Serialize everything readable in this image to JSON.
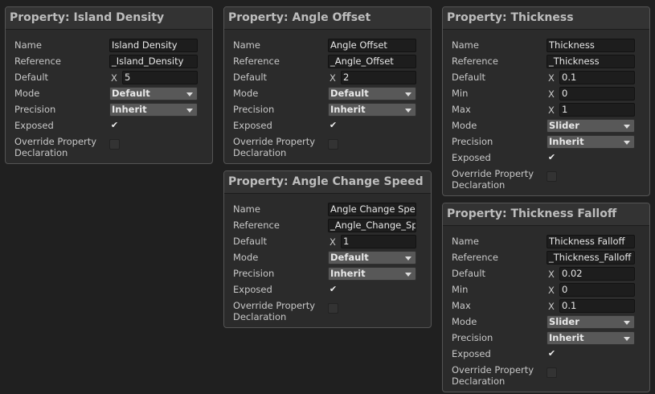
{
  "panels": [
    {
      "title": "Property: Island Density",
      "rows": [
        {
          "label": "Name",
          "text": "Island Density"
        },
        {
          "label": "Reference",
          "text": "_Island_Density"
        },
        {
          "label": "Default",
          "axis": "X",
          "number": 5
        },
        {
          "label": "Mode",
          "dropdown": "Default"
        },
        {
          "label": "Precision",
          "dropdown": "Inherit"
        },
        {
          "label": "Exposed",
          "checked": true
        },
        {
          "label": "Override Property Declaration",
          "checked": false
        }
      ]
    },
    {
      "title": "Property: Angle Offset",
      "rows": [
        {
          "label": "Name",
          "text": "Angle Offset"
        },
        {
          "label": "Reference",
          "text": "_Angle_Offset"
        },
        {
          "label": "Default",
          "axis": "X",
          "number": 2
        },
        {
          "label": "Mode",
          "dropdown": "Default"
        },
        {
          "label": "Precision",
          "dropdown": "Inherit"
        },
        {
          "label": "Exposed",
          "checked": true
        },
        {
          "label": "Override Property Declaration",
          "checked": false
        }
      ]
    },
    {
      "title": "Property: Angle Change Speed",
      "rows": [
        {
          "label": "Name",
          "text": "Angle Change Spe"
        },
        {
          "label": "Reference",
          "text": "_Angle_Change_Sp"
        },
        {
          "label": "Default",
          "axis": "X",
          "number": 1
        },
        {
          "label": "Mode",
          "dropdown": "Default"
        },
        {
          "label": "Precision",
          "dropdown": "Inherit"
        },
        {
          "label": "Exposed",
          "checked": true
        },
        {
          "label": "Override Property Declaration",
          "checked": false
        }
      ]
    },
    {
      "title": "Property: Thickness",
      "rows": [
        {
          "label": "Name",
          "text": "Thickness"
        },
        {
          "label": "Reference",
          "text": "_Thickness"
        },
        {
          "label": "Default",
          "axis": "X",
          "number": 0.1
        },
        {
          "label": "Min",
          "axis": "X",
          "number": 0
        },
        {
          "label": "Max",
          "axis": "X",
          "number": 1
        },
        {
          "label": "Mode",
          "dropdown": "Slider"
        },
        {
          "label": "Precision",
          "dropdown": "Inherit"
        },
        {
          "label": "Exposed",
          "checked": true
        },
        {
          "label": "Override Property Declaration",
          "checked": false
        }
      ]
    },
    {
      "title": "Property: Thickness Falloff",
      "rows": [
        {
          "label": "Name",
          "text": "Thickness Falloff"
        },
        {
          "label": "Reference",
          "text": "_Thickness_Falloff"
        },
        {
          "label": "Default",
          "axis": "X",
          "number": 0.02
        },
        {
          "label": "Min",
          "axis": "X",
          "number": 0
        },
        {
          "label": "Max",
          "axis": "X",
          "number": 0.1
        },
        {
          "label": "Mode",
          "dropdown": "Slider"
        },
        {
          "label": "Precision",
          "dropdown": "Inherit"
        },
        {
          "label": "Exposed",
          "checked": true
        },
        {
          "label": "Override Property Declaration",
          "checked": false
        }
      ]
    }
  ]
}
